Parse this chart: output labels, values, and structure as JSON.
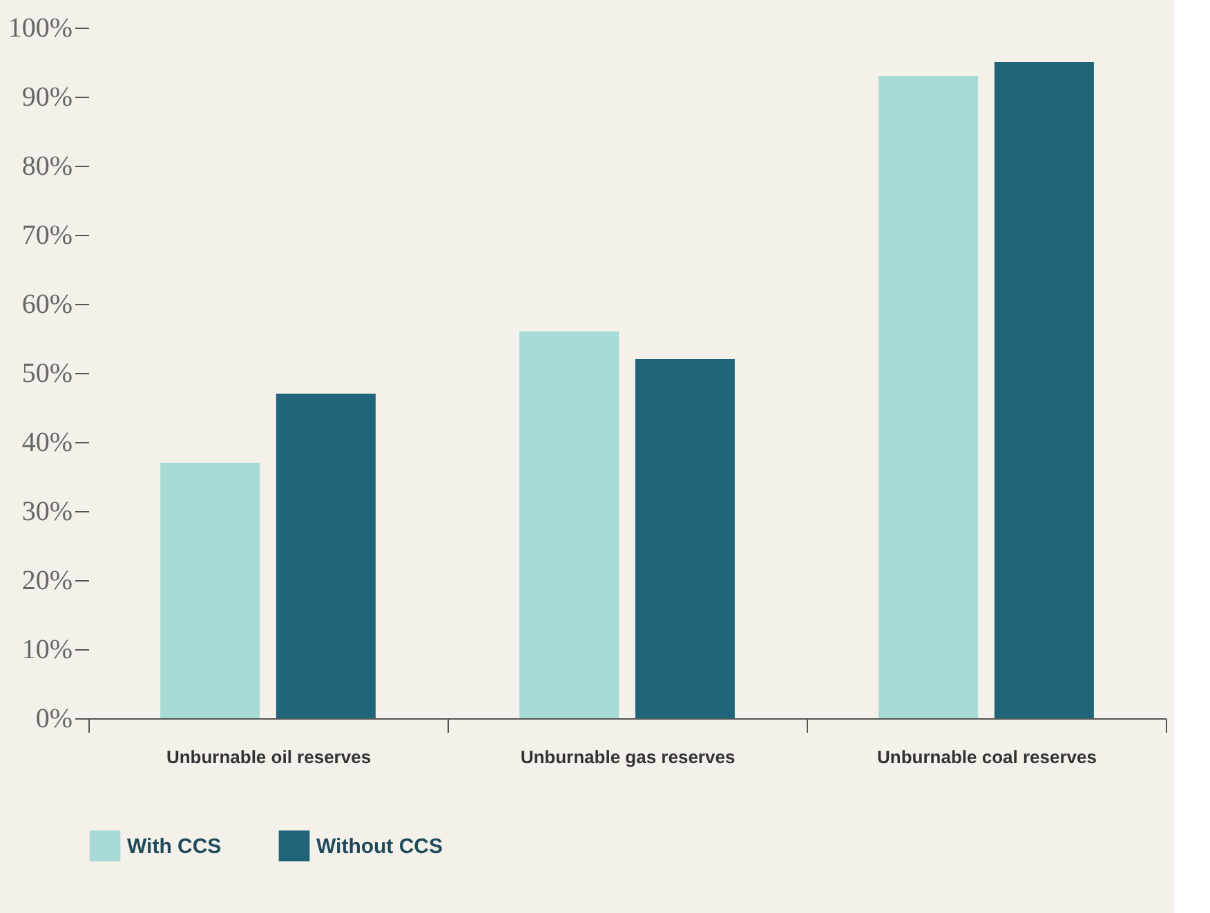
{
  "chart_data": {
    "type": "bar",
    "categories": [
      "Unburnable oil reserves",
      "Unburnable gas reserves",
      "Unburnable coal reserves"
    ],
    "series": [
      {
        "name": "With CCS",
        "color": "#a8dad6",
        "values": [
          37,
          56,
          93
        ]
      },
      {
        "name": "Without CCS",
        "color": "#1f6478",
        "values": [
          47,
          52,
          95
        ]
      }
    ],
    "ylim": [
      0,
      100
    ],
    "yticks": [
      {
        "value": 0,
        "label": "0%"
      },
      {
        "value": 10,
        "label": "10%"
      },
      {
        "value": 20,
        "label": "20%"
      },
      {
        "value": 30,
        "label": "30%"
      },
      {
        "value": 40,
        "label": "40%"
      },
      {
        "value": 50,
        "label": "50%"
      },
      {
        "value": 60,
        "label": "60%"
      },
      {
        "value": 70,
        "label": "70%"
      },
      {
        "value": 80,
        "label": "80%"
      },
      {
        "value": 90,
        "label": "90%"
      },
      {
        "value": 100,
        "label": "100%"
      }
    ],
    "grid": false,
    "legend": "bottom left"
  }
}
